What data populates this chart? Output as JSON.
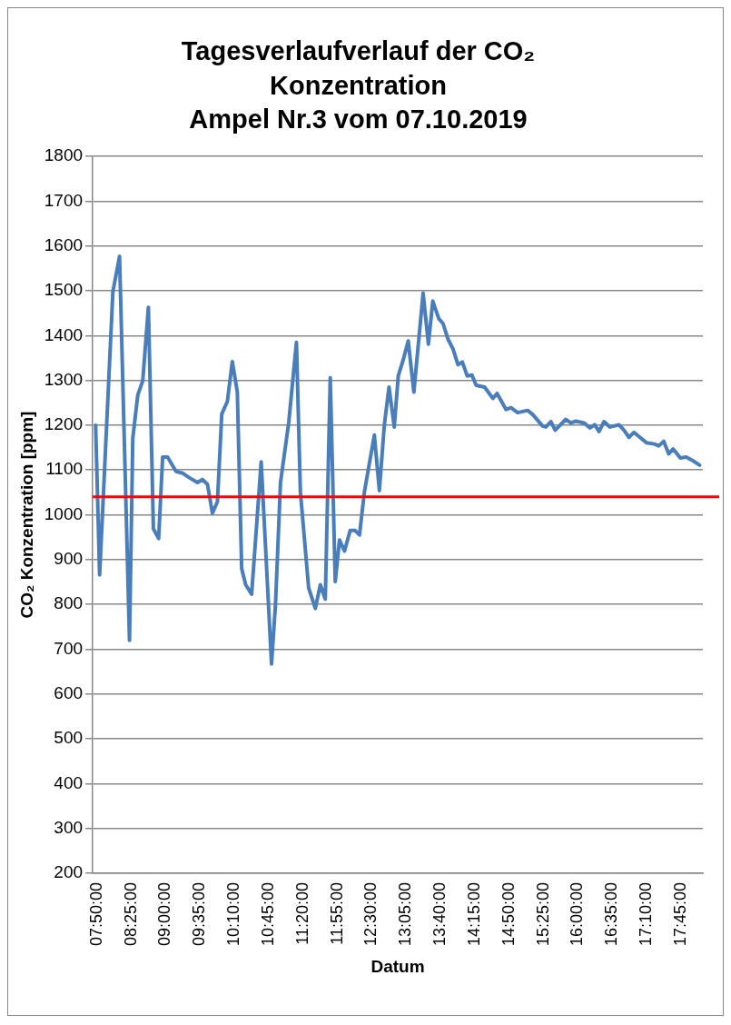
{
  "chart_data": {
    "type": "line",
    "title": "Tagesverlaufverlauf der CO₂\nKonzentration\nAmpel Nr.3 vom 07.10.2019",
    "xlabel": "Datum",
    "ylabel": "CO₂ Konzentration [ppm]",
    "xlim": [
      7.783,
      18.144
    ],
    "xticks": [
      {
        "value": 7.8333,
        "label": "07:50:00"
      },
      {
        "value": 8.4167,
        "label": "08:25:00"
      },
      {
        "value": 9.0,
        "label": "09:00:00"
      },
      {
        "value": 9.5833,
        "label": "09:35:00"
      },
      {
        "value": 10.1667,
        "label": "10:10:00"
      },
      {
        "value": 10.75,
        "label": "10:45:00"
      },
      {
        "value": 11.3333,
        "label": "11:20:00"
      },
      {
        "value": 11.9167,
        "label": "11:55:00"
      },
      {
        "value": 12.5,
        "label": "12:30:00"
      },
      {
        "value": 13.0833,
        "label": "13:05:00"
      },
      {
        "value": 13.6667,
        "label": "13:40:00"
      },
      {
        "value": 14.25,
        "label": "14:15:00"
      },
      {
        "value": 14.8333,
        "label": "14:50:00"
      },
      {
        "value": 15.4167,
        "label": "15:25:00"
      },
      {
        "value": 16.0,
        "label": "16:00:00"
      },
      {
        "value": 16.5833,
        "label": "16:35:00"
      },
      {
        "value": 17.1667,
        "label": "17:10:00"
      },
      {
        "value": 17.75,
        "label": "17:45:00"
      }
    ],
    "ylim": [
      200,
      1800
    ],
    "yticks": [
      200,
      300,
      400,
      500,
      600,
      700,
      800,
      900,
      1000,
      1100,
      1200,
      1300,
      1400,
      1500,
      1600,
      1700,
      1800
    ],
    "grid": "y",
    "legend": false,
    "marker": "none",
    "line_style": "solid",
    "ref_lines": [
      {
        "axis": "y",
        "value": 1040,
        "color": "#ff0000"
      }
    ],
    "x": [
      7.833,
      7.901,
      8.126,
      8.239,
      8.408,
      8.464,
      8.548,
      8.633,
      8.729,
      8.814,
      8.903,
      8.971,
      9.055,
      9.197,
      9.309,
      9.422,
      9.563,
      9.647,
      9.732,
      9.816,
      9.901,
      9.975,
      10.07,
      10.154,
      10.239,
      10.313,
      10.381,
      10.482,
      10.644,
      10.82,
      10.888,
      10.972,
      11.113,
      11.243,
      11.31,
      11.45,
      11.564,
      11.648,
      11.733,
      11.817,
      11.902,
      11.974,
      12.059,
      12.155,
      12.24,
      12.313,
      12.397,
      12.566,
      12.651,
      12.735,
      12.815,
      12.904,
      12.972,
      13.056,
      13.141,
      13.237,
      13.394,
      13.484,
      13.558,
      13.66,
      13.732,
      13.817,
      13.902,
      13.986,
      14.059,
      14.143,
      14.223,
      14.295,
      14.437,
      14.578,
      14.65,
      14.802,
      14.887,
      15.0,
      15.169,
      15.254,
      15.423,
      15.478,
      15.563,
      15.637,
      15.817,
      15.901,
      15.986,
      16.128,
      16.229,
      16.307,
      16.381,
      16.466,
      16.567,
      16.719,
      16.804,
      16.889,
      16.973,
      17.075,
      17.186,
      17.321,
      17.396,
      17.48,
      17.565,
      17.638,
      17.762,
      17.863,
      17.96,
      18.088
    ],
    "series": [
      {
        "color": "#4a7ebb",
        "values": [
          1200,
          866,
          1498,
          1577,
          720,
          1171,
          1267,
          1299,
          1463,
          969,
          947,
          1129,
          1129,
          1097,
          1093,
          1083,
          1072,
          1079,
          1068,
          1004,
          1029,
          1225,
          1253,
          1342,
          1274,
          880,
          844,
          823,
          1118,
          667,
          802,
          1072,
          1207,
          1385,
          1051,
          837,
          791,
          844,
          812,
          1306,
          851,
          944,
          919,
          965,
          965,
          955,
          1051,
          1178,
          1054,
          1200,
          1285,
          1196,
          1310,
          1346,
          1388,
          1274,
          1495,
          1381,
          1477,
          1438,
          1427,
          1392,
          1370,
          1335,
          1341,
          1310,
          1312,
          1289,
          1285,
          1260,
          1271,
          1235,
          1239,
          1228,
          1233,
          1224,
          1198,
          1196,
          1208,
          1189,
          1213,
          1205,
          1209,
          1205,
          1194,
          1201,
          1186,
          1208,
          1196,
          1201,
          1189,
          1173,
          1184,
          1173,
          1161,
          1158,
          1154,
          1164,
          1136,
          1147,
          1127,
          1129,
          1122,
          1111
        ]
      }
    ]
  }
}
